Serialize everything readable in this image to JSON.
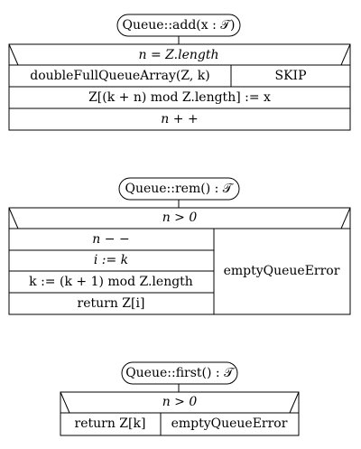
{
  "diagrams": [
    {
      "header": "Queue::add(x : 𝒯)",
      "rows": [
        {
          "kind": "condition",
          "text": "n = Z.length"
        },
        {
          "kind": "split",
          "yes": "doubleFullQueueArray(Z, k)",
          "no": "SKIP"
        },
        {
          "kind": "statement",
          "text": "Z[(k + n) mod Z.length] := x"
        },
        {
          "kind": "statement",
          "text": "n + +"
        }
      ]
    },
    {
      "header": "Queue::rem() : 𝒯",
      "condition": "n > 0",
      "then": [
        "n − −",
        "i := k",
        "k := (k + 1) mod Z.length",
        "return Z[i]"
      ],
      "else": "emptyQueueError"
    },
    {
      "header": "Queue::first() : 𝒯",
      "condition": "n > 0",
      "then": "return Z[k]",
      "else": "emptyQueueError"
    }
  ]
}
